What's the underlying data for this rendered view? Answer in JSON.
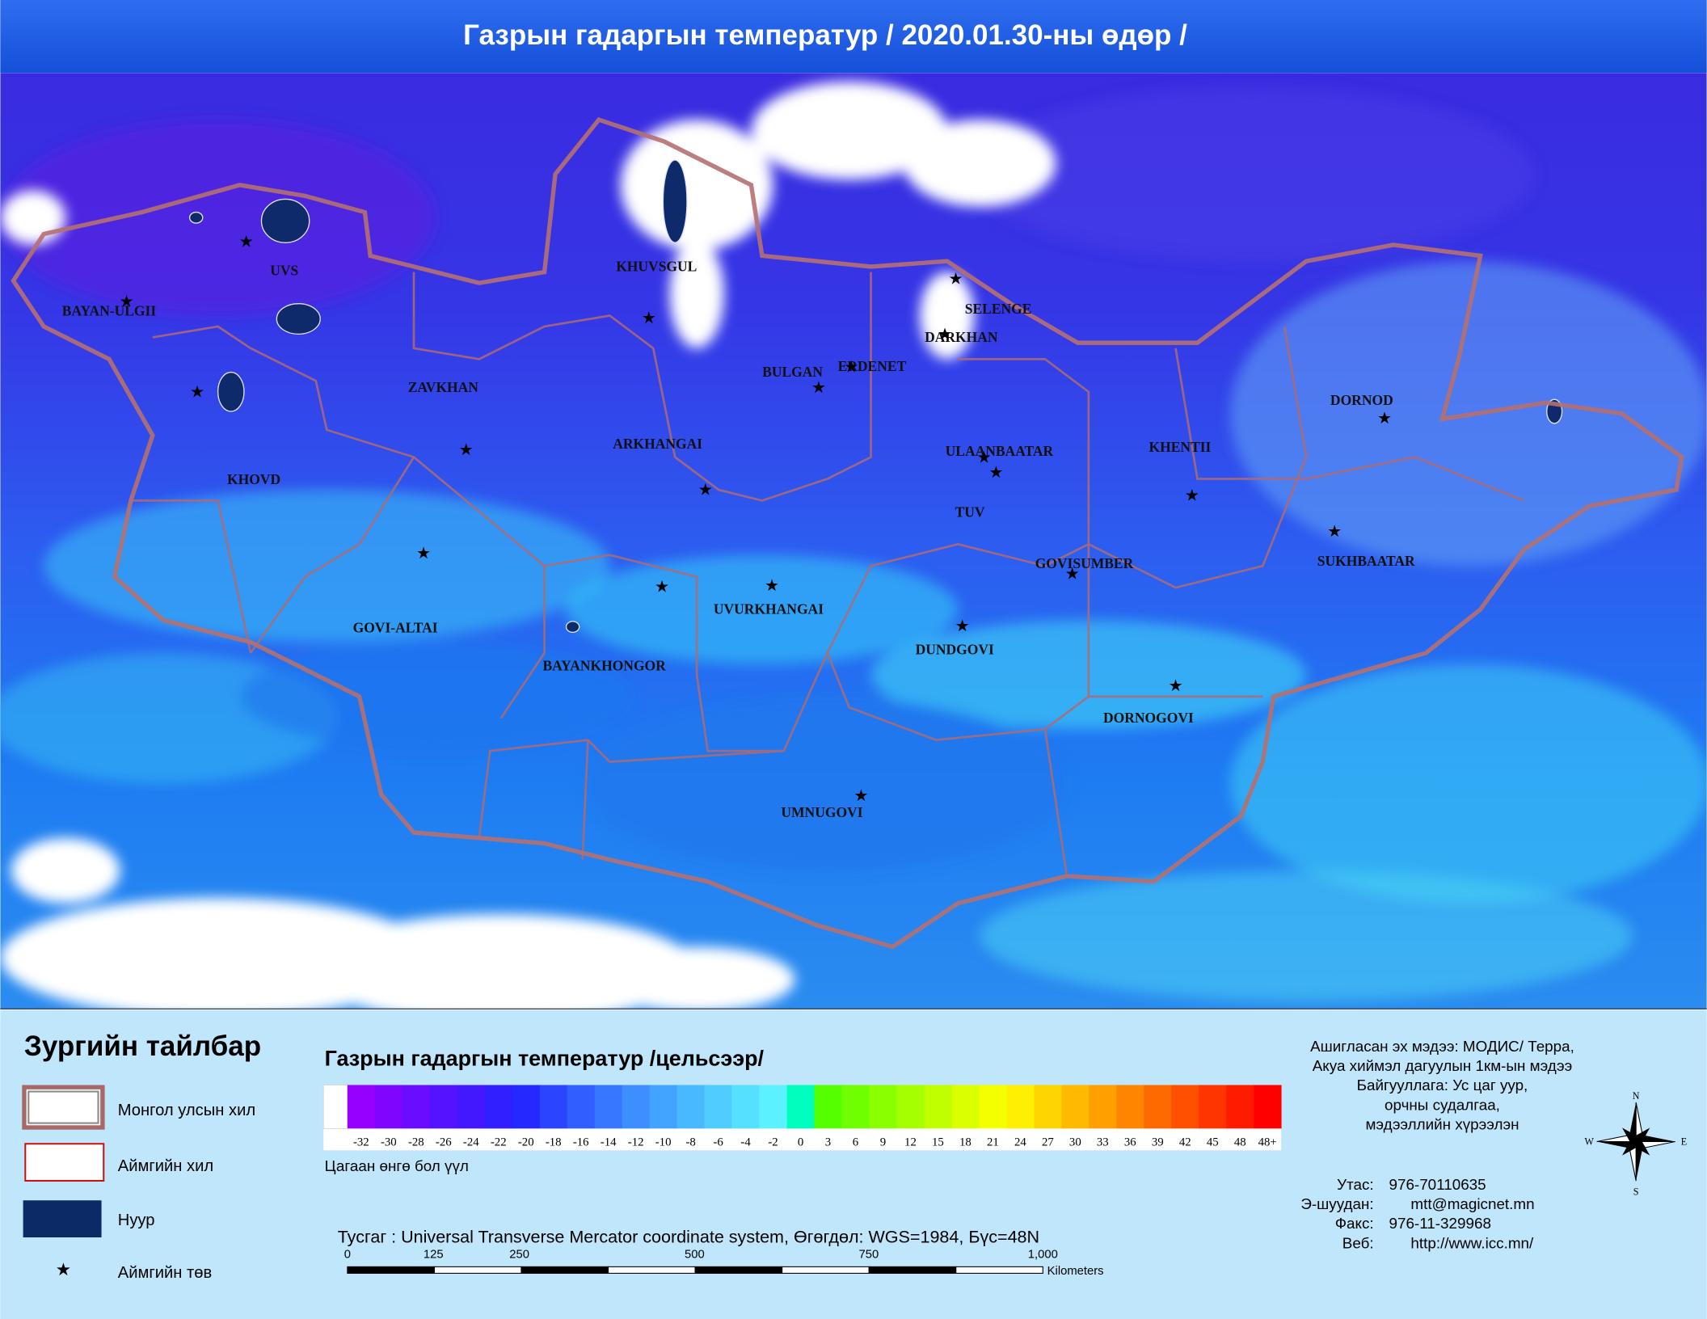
{
  "title": "Газрын гадаргын температур / 2020.01.30-ны өдөр /",
  "provinces": [
    "BAYAN-ULGII",
    "UVS",
    "KHUVSGUL",
    "SELENGE",
    "DARKHAN",
    "BULGAN",
    "ERDENET",
    "ZAVKHAN",
    "KHOVD",
    "ARKHANGAI",
    "ULAANBAATAR",
    "KHENTII",
    "DORNOD",
    "TUV",
    "GOVISUMBER",
    "SUKHBAATAR",
    "GOVI-ALTAI",
    "UVURKHANGAI",
    "DUNDGOVI",
    "BAYANKHONGOR",
    "DORNOGOVI",
    "UMNUGOVI"
  ],
  "legend": {
    "title": "Зургийн тайлбар",
    "items": [
      "Монгол улсын хил",
      "Аймгийн хил",
      "Нуур",
      "Аймгийн төв"
    ]
  },
  "colorbar": {
    "title": "Газрын гадаргын температур /цельсээр/",
    "labels": [
      "-32",
      "-30",
      "-28",
      "-26",
      "-24",
      "-22",
      "-20",
      "-18",
      "-16",
      "-14",
      "-12",
      "-10",
      "-8",
      "-6",
      "-4",
      "-2",
      "0",
      "3",
      "6",
      "9",
      "12",
      "15",
      "18",
      "21",
      "24",
      "27",
      "30",
      "33",
      "36",
      "39",
      "42",
      "45",
      "48",
      "48+"
    ],
    "note": "Цагаан өнгө бол үүл"
  },
  "projection": "Тусгаг : Universal Transverse Mercator coordinate system, Өгөгдөл: WGS=1984, Бүс=48N",
  "scale_bar": {
    "labels": [
      "0",
      "125",
      "250",
      "500",
      "750",
      "1,000"
    ],
    "unit": "Kilometers"
  },
  "source": [
    "Ашигласан эх мэдээ: МОДИС/ Терра,",
    "Акуа хиймэл дагуулын 1км-ын мэдээ",
    "Байгууллага: Ус цаг уур,",
    "орчны судалгаа,",
    "мэдээллийн хүрээлэн"
  ],
  "contacts": [
    {
      "label": "Утас:",
      "value": "976-70110635"
    },
    {
      "label": "Э-шуудан:",
      "value": "mtt@magicnet.mn"
    },
    {
      "label": "Факс:",
      "value": "976-11-329968"
    },
    {
      "label": "Веб:",
      "value": "http://www.icc.mn/"
    }
  ],
  "compass": [
    "N",
    "E",
    "S",
    "W"
  ]
}
